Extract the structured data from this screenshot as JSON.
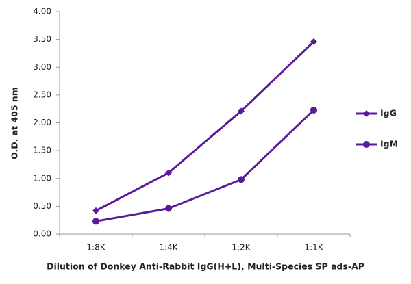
{
  "chart_data": {
    "type": "line",
    "x_label": "Dilution of Donkey Anti-Rabbit IgG(H+L), Multi-Species SP ads-AP",
    "y_label": "O.D. at 405 nm",
    "categories": [
      "1:8K",
      "1:4K",
      "1:2K",
      "1:1K"
    ],
    "series": [
      {
        "name": "IgG",
        "color": "#5a1a9c",
        "marker": "diamond",
        "values": [
          0.42,
          1.1,
          2.21,
          3.46
        ]
      },
      {
        "name": "IgM",
        "color": "#5a1a9c",
        "marker": "circle",
        "values": [
          0.23,
          0.46,
          0.98,
          2.23
        ]
      }
    ],
    "ylim": [
      0,
      4
    ],
    "yticks": [
      {
        "value": 0,
        "label": "0.00"
      },
      {
        "value": 0.5,
        "label": "0.50"
      },
      {
        "value": 1,
        "label": "1.00"
      },
      {
        "value": 1.5,
        "label": "1.50"
      },
      {
        "value": 2,
        "label": "2.00"
      },
      {
        "value": 2.5,
        "label": "2.50"
      },
      {
        "value": 3,
        "label": "3.00"
      },
      {
        "value": 3.5,
        "label": "3.50"
      },
      {
        "value": 4,
        "label": "4.00"
      }
    ],
    "grid": false,
    "legend": "right"
  }
}
